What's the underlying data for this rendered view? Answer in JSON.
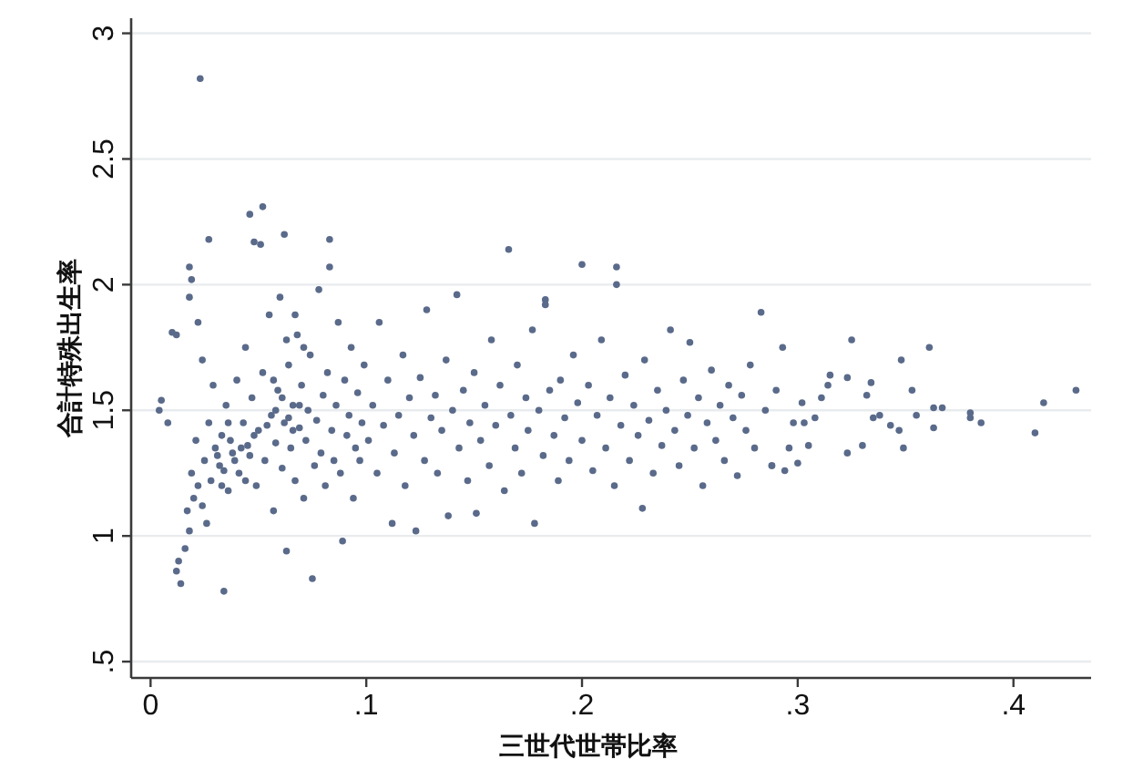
{
  "chart_data": {
    "type": "scatter",
    "xlabel": "三世代世帯比率",
    "ylabel": "合計特殊出生率",
    "xlim": [
      -0.009,
      0.436
    ],
    "ylim": [
      0.435,
      3.06
    ],
    "xticks": [
      0,
      {
        "value": 0.1,
        "label": ".1"
      },
      {
        "value": 0.2,
        "label": ".2"
      },
      {
        "value": 0.3,
        "label": ".3"
      },
      {
        "value": 0.4,
        "label": ".4"
      }
    ],
    "yticks": [
      {
        "value": 0.5,
        "label": ".5"
      },
      1,
      1.5,
      2,
      2.5,
      3
    ],
    "grid": "y",
    "marker": "circle",
    "color": "#5a6a8a",
    "x": [
      0.012,
      0.014,
      0.013,
      0.016,
      0.018,
      0.017,
      0.02,
      0.022,
      0.019,
      0.024,
      0.025,
      0.021,
      0.026,
      0.028,
      0.027,
      0.029,
      0.03,
      0.024,
      0.022,
      0.018,
      0.019,
      0.004,
      0.005,
      0.008,
      0.01,
      0.012,
      0.023,
      0.027,
      0.018,
      0.034,
      0.075,
      0.032,
      0.033,
      0.035,
      0.036,
      0.038,
      0.04,
      0.041,
      0.043,
      0.044,
      0.045,
      0.046,
      0.048,
      0.047,
      0.049,
      0.05,
      0.051,
      0.052,
      0.052,
      0.053,
      0.055,
      0.056,
      0.057,
      0.058,
      0.059,
      0.06,
      0.061,
      0.062,
      0.062,
      0.063,
      0.064,
      0.065,
      0.066,
      0.067,
      0.068,
      0.069,
      0.07,
      0.071,
      0.072,
      0.073,
      0.074,
      0.076,
      0.077,
      0.078,
      0.079,
      0.08,
      0.081,
      0.082,
      0.083,
      0.083,
      0.084,
      0.085,
      0.086,
      0.087,
      0.088,
      0.089,
      0.09,
      0.091,
      0.092,
      0.093,
      0.094,
      0.095,
      0.096,
      0.097,
      0.098,
      0.099,
      0.031,
      0.034,
      0.037,
      0.039,
      0.042,
      0.044,
      0.046,
      0.048,
      0.033,
      0.036,
      0.054,
      0.058,
      0.061,
      0.064,
      0.066,
      0.069,
      0.057,
      0.063,
      0.067,
      0.071,
      0.101,
      0.103,
      0.105,
      0.106,
      0.108,
      0.11,
      0.112,
      0.113,
      0.115,
      0.117,
      0.118,
      0.12,
      0.122,
      0.123,
      0.125,
      0.127,
      0.128,
      0.13,
      0.132,
      0.133,
      0.135,
      0.137,
      0.138,
      0.14,
      0.142,
      0.143,
      0.145,
      0.147,
      0.148,
      0.15,
      0.151,
      0.153,
      0.155,
      0.157,
      0.158,
      0.16,
      0.162,
      0.164,
      0.166,
      0.167,
      0.169,
      0.17,
      0.172,
      0.174,
      0.175,
      0.177,
      0.178,
      0.18,
      0.182,
      0.183,
      0.183,
      0.185,
      0.187,
      0.189,
      0.19,
      0.192,
      0.194,
      0.196,
      0.198,
      0.2,
      0.2,
      0.203,
      0.205,
      0.207,
      0.209,
      0.211,
      0.213,
      0.215,
      0.216,
      0.216,
      0.218,
      0.22,
      0.222,
      0.224,
      0.226,
      0.228,
      0.229,
      0.231,
      0.233,
      0.235,
      0.237,
      0.239,
      0.241,
      0.243,
      0.245,
      0.247,
      0.249,
      0.25,
      0.252,
      0.254,
      0.256,
      0.258,
      0.26,
      0.262,
      0.264,
      0.266,
      0.268,
      0.27,
      0.272,
      0.274,
      0.276,
      0.278,
      0.28,
      0.283,
      0.285,
      0.288,
      0.29,
      0.293,
      0.429,
      0.414,
      0.41,
      0.38,
      0.38,
      0.385,
      0.367,
      0.363,
      0.363,
      0.361,
      0.355,
      0.353,
      0.348,
      0.349,
      0.325,
      0.323,
      0.294,
      0.3,
      0.334,
      0.335,
      0.33,
      0.315,
      0.314,
      0.311,
      0.305,
      0.296,
      0.288,
      0.338,
      0.343,
      0.347,
      0.323,
      0.332,
      0.302,
      0.298,
      0.303,
      0.308
    ],
    "values": [
      0.86,
      0.81,
      0.9,
      0.95,
      1.02,
      1.1,
      1.15,
      1.2,
      1.25,
      1.12,
      1.3,
      1.38,
      1.05,
      1.22,
      1.45,
      1.6,
      1.35,
      1.7,
      1.85,
      1.95,
      2.02,
      1.5,
      1.54,
      1.45,
      1.81,
      1.8,
      2.82,
      2.18,
      2.07,
      0.78,
      0.83,
      1.28,
      1.4,
      1.52,
      1.18,
      1.33,
      1.62,
      1.25,
      1.45,
      1.75,
      1.36,
      2.28,
      2.17,
      1.55,
      1.2,
      1.42,
      2.16,
      2.31,
      1.65,
      1.3,
      1.88,
      1.48,
      1.1,
      1.37,
      1.58,
      1.95,
      1.27,
      2.2,
      1.45,
      0.94,
      1.68,
      1.35,
      1.52,
      1.22,
      1.8,
      1.43,
      1.6,
      1.15,
      1.38,
      1.5,
      1.72,
      1.28,
      1.46,
      1.98,
      1.33,
      1.56,
      1.2,
      1.65,
      2.18,
      2.07,
      1.42,
      1.3,
      1.52,
      1.85,
      1.25,
      0.98,
      1.62,
      1.4,
      1.48,
      1.75,
      1.15,
      1.35,
      1.57,
      1.3,
      1.45,
      1.68,
      1.32,
      1.26,
      1.38,
      1.3,
      1.35,
      1.22,
      1.32,
      1.4,
      1.2,
      1.45,
      1.44,
      1.5,
      1.55,
      1.47,
      1.42,
      1.52,
      1.62,
      1.78,
      1.88,
      1.75,
      1.38,
      1.52,
      1.25,
      1.85,
      1.44,
      1.62,
      1.05,
      1.33,
      1.48,
      1.72,
      1.2,
      1.55,
      1.4,
      1.02,
      1.63,
      1.3,
      1.9,
      1.47,
      1.56,
      1.25,
      1.42,
      1.7,
      1.08,
      1.5,
      1.96,
      1.35,
      1.58,
      1.22,
      1.45,
      1.65,
      1.09,
      1.38,
      1.52,
      1.28,
      1.78,
      1.44,
      1.6,
      1.18,
      2.14,
      1.48,
      1.35,
      1.68,
      1.25,
      1.55,
      1.42,
      1.82,
      1.05,
      1.5,
      1.32,
      1.94,
      1.92,
      1.58,
      1.4,
      1.22,
      1.62,
      1.47,
      1.3,
      1.72,
      1.53,
      2.08,
      1.38,
      1.6,
      1.26,
      1.48,
      1.78,
      1.35,
      1.55,
      1.2,
      2.07,
      2.0,
      1.44,
      1.64,
      1.3,
      1.52,
      1.4,
      1.11,
      1.7,
      1.46,
      1.25,
      1.58,
      1.36,
      1.5,
      1.82,
      1.42,
      1.28,
      1.62,
      1.48,
      1.77,
      1.35,
      1.55,
      1.2,
      1.45,
      1.66,
      1.38,
      1.52,
      1.3,
      1.6,
      1.47,
      1.24,
      1.56,
      1.42,
      1.68,
      1.35,
      1.89,
      1.5,
      1.28,
      1.58,
      1.75,
      1.58,
      1.53,
      1.41,
      1.49,
      1.47,
      1.45,
      1.51,
      1.51,
      1.43,
      1.75,
      1.48,
      1.58,
      1.7,
      1.35,
      1.78,
      1.33,
      1.26,
      1.29,
      1.61,
      1.47,
      1.36,
      1.64,
      1.6,
      1.55,
      1.36,
      1.35,
      1.28,
      1.48,
      1.44,
      1.42,
      1.63,
      1.56,
      1.53,
      1.45,
      1.45,
      1.47
    ]
  }
}
